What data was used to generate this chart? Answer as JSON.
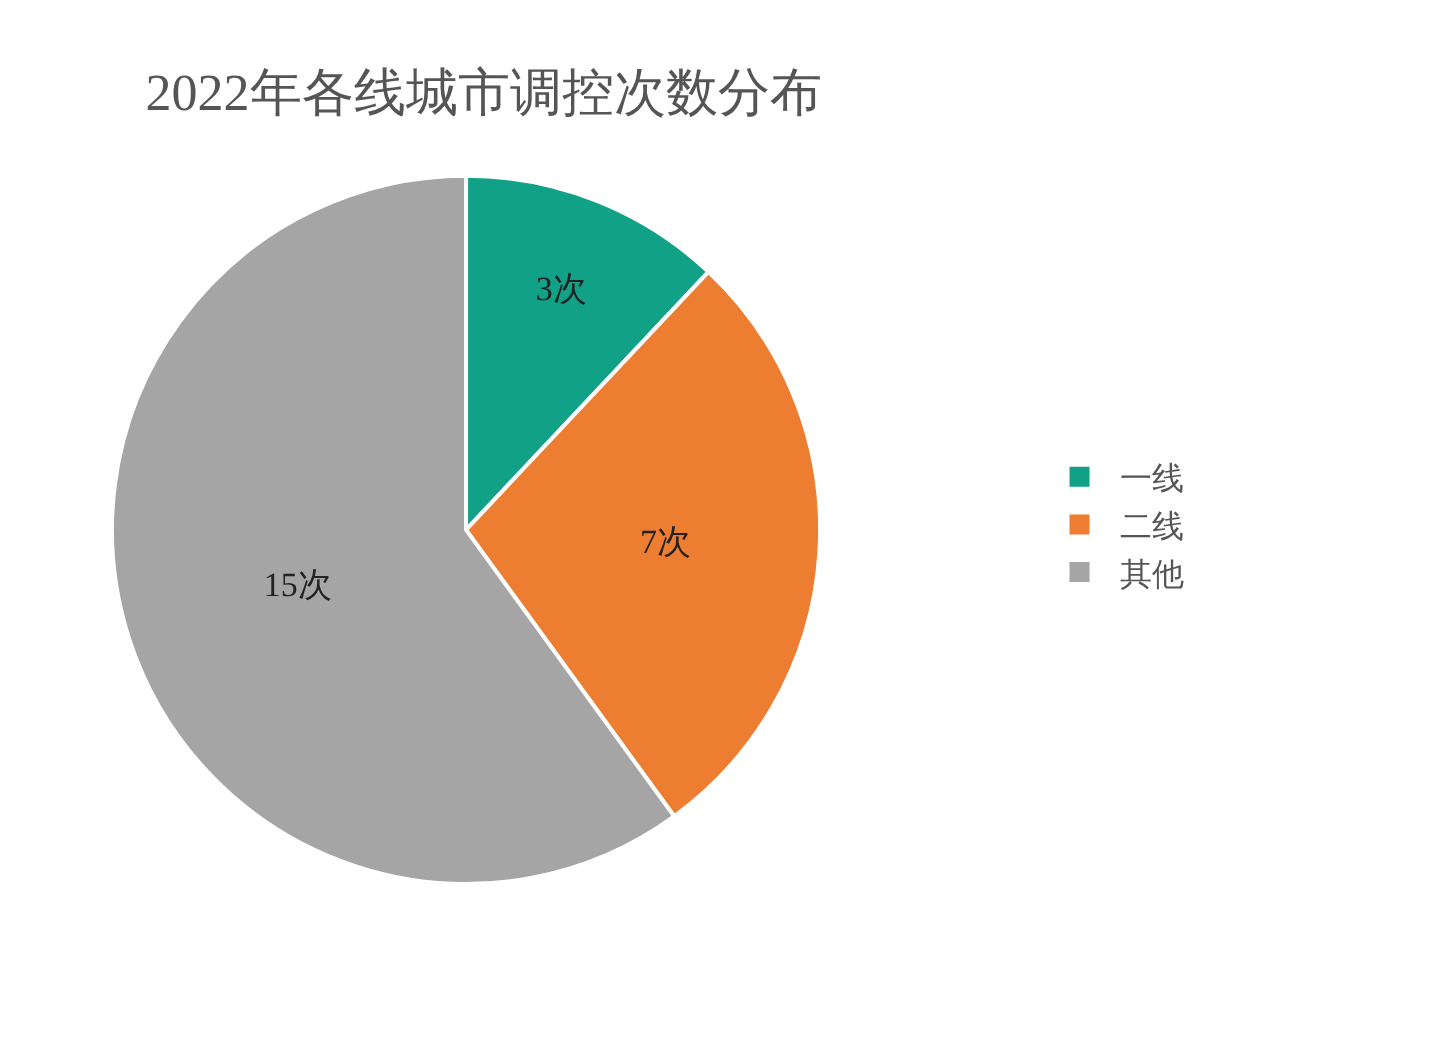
{
  "chart_data": {
    "type": "pie",
    "title": "2022年各线城市调控次数分布",
    "categories": [
      "一线",
      "二线",
      "其他"
    ],
    "values": [
      3,
      7,
      15
    ],
    "value_labels": [
      "3次",
      "7次",
      "15次"
    ],
    "colors": [
      "#11a186",
      "#ed7d31",
      "#a5a5a5"
    ],
    "legend": "right"
  }
}
